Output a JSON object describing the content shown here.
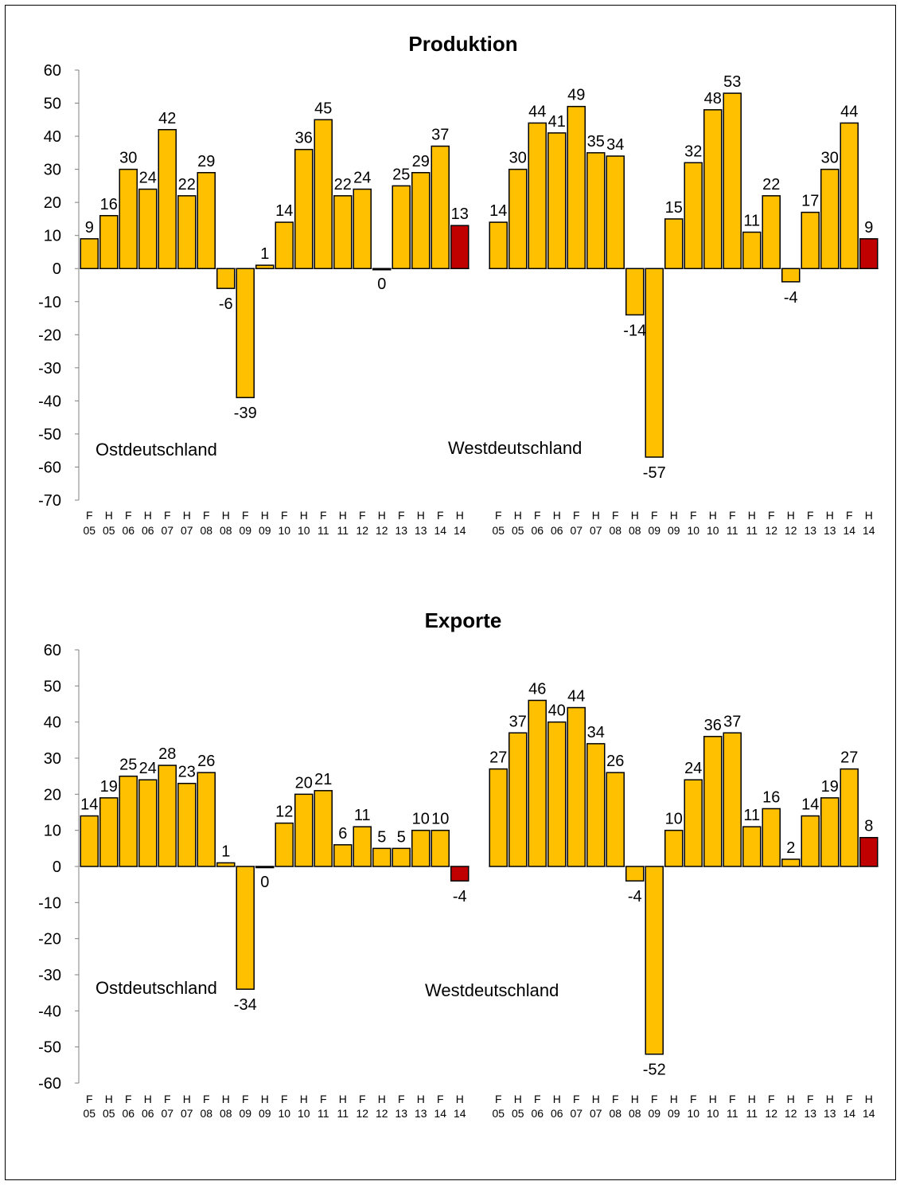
{
  "chart_data": [
    {
      "type": "bar",
      "title": "Produktion",
      "ylim": [
        -70,
        60
      ],
      "yticks": [
        60,
        50,
        40,
        30,
        20,
        10,
        0,
        -10,
        -20,
        -30,
        -40,
        -50,
        -60,
        -70
      ],
      "colors": {
        "bar": "#ffc000",
        "highlight": "#c00000"
      },
      "groups": [
        {
          "name": "Ostdeutschland",
          "categories": [
            [
              "F",
              "05"
            ],
            [
              "H",
              "05"
            ],
            [
              "F",
              "06"
            ],
            [
              "H",
              "06"
            ],
            [
              "F",
              "07"
            ],
            [
              "H",
              "07"
            ],
            [
              "F",
              "08"
            ],
            [
              "H",
              "08"
            ],
            [
              "F",
              "09"
            ],
            [
              "H",
              "09"
            ],
            [
              "F",
              "10"
            ],
            [
              "H",
              "10"
            ],
            [
              "F",
              "11"
            ],
            [
              "H",
              "11"
            ],
            [
              "F",
              "12"
            ],
            [
              "H",
              "12"
            ],
            [
              "F",
              "13"
            ],
            [
              "H",
              "13"
            ],
            [
              "F",
              "14"
            ],
            [
              "H",
              "14"
            ]
          ],
          "values": [
            9,
            16,
            30,
            24,
            42,
            22,
            29,
            -6,
            -39,
            1,
            14,
            36,
            45,
            22,
            24,
            0,
            25,
            29,
            37,
            13
          ],
          "highlight_index": 19
        },
        {
          "name": "Westdeutschland",
          "categories": [
            [
              "F",
              "05"
            ],
            [
              "H",
              "05"
            ],
            [
              "F",
              "06"
            ],
            [
              "H",
              "06"
            ],
            [
              "F",
              "07"
            ],
            [
              "H",
              "07"
            ],
            [
              "F",
              "08"
            ],
            [
              "H",
              "08"
            ],
            [
              "F",
              "09"
            ],
            [
              "H",
              "09"
            ],
            [
              "F",
              "10"
            ],
            [
              "H",
              "10"
            ],
            [
              "F",
              "11"
            ],
            [
              "H",
              "11"
            ],
            [
              "F",
              "12"
            ],
            [
              "H",
              "12"
            ],
            [
              "F",
              "13"
            ],
            [
              "H",
              "13"
            ],
            [
              "F",
              "14"
            ],
            [
              "H",
              "14"
            ]
          ],
          "values": [
            14,
            30,
            44,
            41,
            49,
            35,
            34,
            -14,
            -57,
            15,
            32,
            48,
            53,
            11,
            22,
            -4,
            17,
            30,
            44,
            9
          ],
          "highlight_index": 19
        }
      ]
    },
    {
      "type": "bar",
      "title": "Exporte",
      "ylim": [
        -60,
        60
      ],
      "yticks": [
        60,
        50,
        40,
        30,
        20,
        10,
        0,
        -10,
        -20,
        -30,
        -40,
        -50,
        -60
      ],
      "colors": {
        "bar": "#ffc000",
        "highlight": "#c00000"
      },
      "groups": [
        {
          "name": "Ostdeutschland",
          "categories": [
            [
              "F",
              "05"
            ],
            [
              "H",
              "05"
            ],
            [
              "F",
              "06"
            ],
            [
              "H",
              "06"
            ],
            [
              "F",
              "07"
            ],
            [
              "H",
              "07"
            ],
            [
              "F",
              "08"
            ],
            [
              "H",
              "08"
            ],
            [
              "F",
              "09"
            ],
            [
              "H",
              "09"
            ],
            [
              "F",
              "10"
            ],
            [
              "H",
              "10"
            ],
            [
              "F",
              "11"
            ],
            [
              "H",
              "11"
            ],
            [
              "F",
              "12"
            ],
            [
              "H",
              "12"
            ],
            [
              "F",
              "13"
            ],
            [
              "H",
              "13"
            ],
            [
              "F",
              "14"
            ],
            [
              "H",
              "14"
            ]
          ],
          "values": [
            14,
            19,
            25,
            24,
            28,
            23,
            26,
            1,
            -34,
            0,
            12,
            20,
            21,
            6,
            11,
            5,
            5,
            10,
            10,
            -4
          ],
          "highlight_index": 19
        },
        {
          "name": "Westdeutschland",
          "categories": [
            [
              "F",
              "05"
            ],
            [
              "H",
              "05"
            ],
            [
              "F",
              "06"
            ],
            [
              "H",
              "06"
            ],
            [
              "F",
              "07"
            ],
            [
              "H",
              "07"
            ],
            [
              "F",
              "08"
            ],
            [
              "H",
              "08"
            ],
            [
              "F",
              "09"
            ],
            [
              "H",
              "09"
            ],
            [
              "F",
              "10"
            ],
            [
              "H",
              "10"
            ],
            [
              "F",
              "11"
            ],
            [
              "H",
              "11"
            ],
            [
              "F",
              "12"
            ],
            [
              "H",
              "12"
            ],
            [
              "F",
              "13"
            ],
            [
              "H",
              "13"
            ],
            [
              "F",
              "14"
            ],
            [
              "H",
              "14"
            ]
          ],
          "values": [
            27,
            37,
            46,
            40,
            44,
            34,
            26,
            -4,
            -52,
            10,
            24,
            36,
            37,
            11,
            16,
            2,
            14,
            19,
            27,
            8
          ],
          "highlight_index": 19
        }
      ]
    }
  ]
}
